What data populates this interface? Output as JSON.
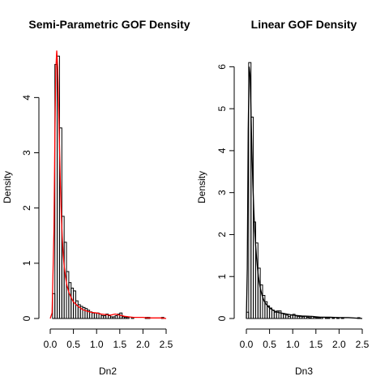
{
  "chart_data": [
    {
      "type": "histogram",
      "title": "Semi-Parametric GOF Density",
      "xlabel": "Dn2",
      "ylabel": "Density",
      "xlim": [
        0,
        2.5
      ],
      "ylim": [
        0,
        4.9
      ],
      "x_ticks": [
        "0.0",
        "0.5",
        "1.0",
        "1.5",
        "2.0",
        "2.5"
      ],
      "y_ticks": [
        "0",
        "1",
        "2",
        "3",
        "4"
      ],
      "bin_width": 0.05,
      "bin_start": 0.0,
      "densities": [
        0.0,
        0.45,
        4.6,
        4.75,
        3.45,
        1.85,
        1.38,
        0.85,
        0.65,
        0.55,
        0.5,
        0.32,
        0.25,
        0.22,
        0.2,
        0.18,
        0.15,
        0.12,
        0.1,
        0.1,
        0.1,
        0.08,
        0.05,
        0.05,
        0.08,
        0.05,
        0.03,
        0.03,
        0.05,
        0.08,
        0.1,
        0.03,
        0.02,
        0.02,
        0.0,
        0.02,
        0.0,
        0.0,
        0.0,
        0.0,
        0.0,
        0.02,
        0.02,
        0.0,
        0.0,
        0.0,
        0.0,
        0.0,
        0.02
      ],
      "density_curve": {
        "color": "#ff0000",
        "x": [
          0.0,
          0.04,
          0.08,
          0.1,
          0.12,
          0.14,
          0.16,
          0.18,
          0.2,
          0.22,
          0.24,
          0.26,
          0.28,
          0.3,
          0.33,
          0.36,
          0.4,
          0.45,
          0.5,
          0.55,
          0.6,
          0.7,
          0.8,
          0.9,
          1.0,
          1.1,
          1.2,
          1.3,
          1.4,
          1.5,
          1.6,
          1.7,
          1.8,
          1.9,
          2.0,
          2.1,
          2.2,
          2.3,
          2.4,
          2.5
        ],
        "y": [
          0.0,
          0.1,
          1.6,
          3.3,
          4.5,
          4.85,
          4.55,
          3.9,
          3.1,
          2.4,
          1.85,
          1.45,
          1.15,
          0.95,
          0.75,
          0.6,
          0.48,
          0.38,
          0.3,
          0.26,
          0.22,
          0.16,
          0.13,
          0.11,
          0.1,
          0.08,
          0.07,
          0.06,
          0.08,
          0.06,
          0.04,
          0.03,
          0.02,
          0.02,
          0.02,
          0.01,
          0.01,
          0.01,
          0.01,
          0.0
        ]
      }
    },
    {
      "type": "histogram",
      "title": "Linear GOF Density",
      "xlabel": "Dn3",
      "ylabel": "Density",
      "xlim": [
        0,
        2.5
      ],
      "ylim": [
        0,
        6.2
      ],
      "x_ticks": [
        "0.0",
        "0.5",
        "1.0",
        "1.5",
        "2.0",
        "2.5"
      ],
      "y_ticks": [
        "0",
        "1",
        "2",
        "3",
        "4",
        "5",
        "6"
      ],
      "bin_width": 0.05,
      "bin_start": 0.0,
      "densities": [
        0.15,
        6.1,
        4.8,
        2.3,
        1.8,
        1.2,
        0.8,
        0.55,
        0.4,
        0.3,
        0.25,
        0.2,
        0.15,
        0.18,
        0.18,
        0.12,
        0.1,
        0.08,
        0.05,
        0.08,
        0.1,
        0.06,
        0.05,
        0.05,
        0.04,
        0.05,
        0.03,
        0.02,
        0.05,
        0.03,
        0.02,
        0.02,
        0.03,
        0.0,
        0.02,
        0.02,
        0.0,
        0.02,
        0.0,
        0.02,
        0.0,
        0.02,
        0.0,
        0.0,
        0.0,
        0.0,
        0.0,
        0.0,
        0.02
      ],
      "density_curve": {
        "color": "#000000",
        "x": [
          0.0,
          0.02,
          0.04,
          0.06,
          0.08,
          0.1,
          0.12,
          0.14,
          0.16,
          0.18,
          0.2,
          0.22,
          0.24,
          0.26,
          0.28,
          0.3,
          0.34,
          0.38,
          0.42,
          0.5,
          0.6,
          0.7,
          0.8,
          1.0,
          1.2,
          1.4,
          1.6,
          1.8,
          2.0,
          2.2,
          2.5
        ],
        "y": [
          0.0,
          1.2,
          4.5,
          6.0,
          5.8,
          4.9,
          4.0,
          3.2,
          2.6,
          2.1,
          1.75,
          1.45,
          1.2,
          1.0,
          0.85,
          0.72,
          0.55,
          0.42,
          0.35,
          0.25,
          0.18,
          0.14,
          0.12,
          0.08,
          0.06,
          0.05,
          0.03,
          0.03,
          0.02,
          0.02,
          0.0
        ]
      }
    }
  ]
}
